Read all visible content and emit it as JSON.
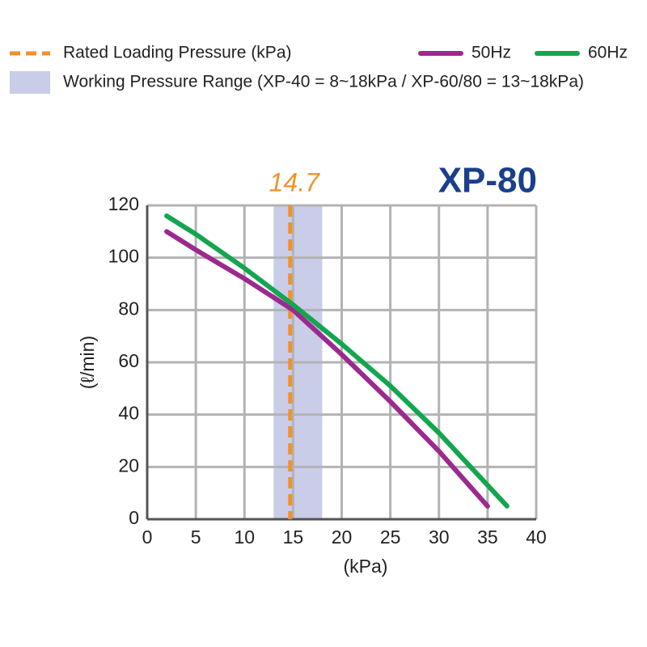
{
  "chart_data": {
    "type": "line",
    "title": "XP-80",
    "x_label": "(kPa)",
    "y_label": "(ℓ/min)",
    "xlim": [
      0,
      40
    ],
    "xticks": [
      0,
      5,
      10,
      15,
      20,
      25,
      30,
      35,
      40
    ],
    "ylim": [
      0,
      120
    ],
    "yticks": [
      0,
      20,
      40,
      60,
      80,
      100,
      120
    ],
    "grid": true,
    "rated_pressure": {
      "name": "Rated Loading Pressure (kPa)",
      "value": 14.7,
      "color": "#f0922b"
    },
    "working_range": {
      "name": "Working Pressure Range (XP-40 = 8~18kPa / XP-60/80 = 13~18kPa)",
      "values": [
        13,
        18
      ],
      "color": "#c9cde8"
    },
    "series": [
      {
        "name": "50Hz",
        "color": "#9b2a8e",
        "x": [
          2,
          5,
          10,
          15,
          20,
          25,
          30,
          35
        ],
        "values": [
          110,
          103,
          92,
          80,
          63,
          45,
          26,
          5
        ]
      },
      {
        "name": "60Hz",
        "color": "#14a550",
        "x": [
          2,
          5,
          10,
          15,
          20,
          25,
          30,
          35,
          37
        ],
        "values": [
          116,
          109,
          96,
          82,
          67,
          51,
          33,
          13,
          5
        ]
      }
    ]
  }
}
